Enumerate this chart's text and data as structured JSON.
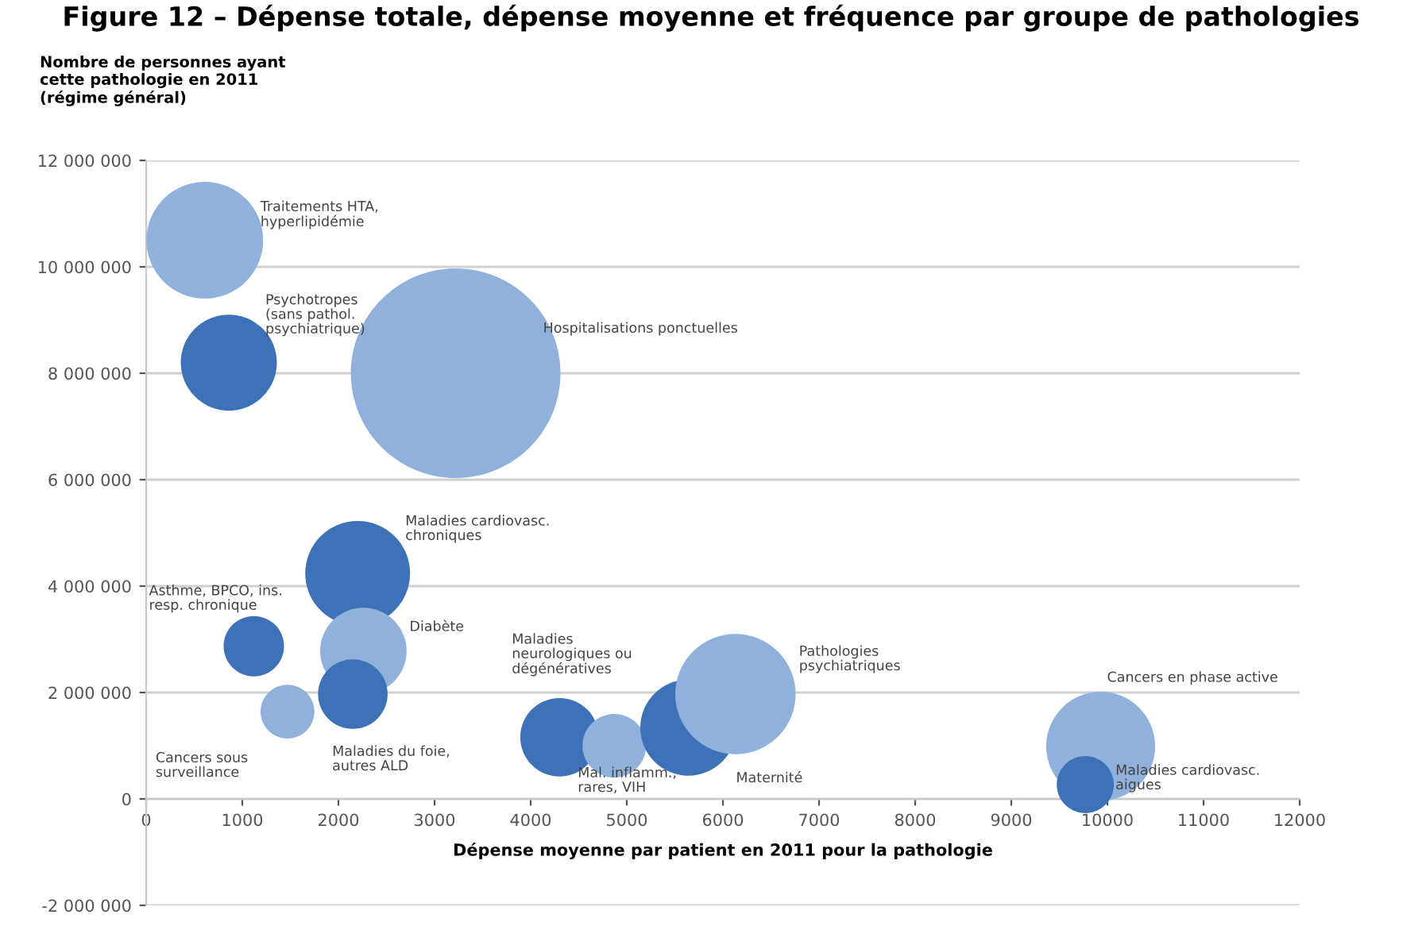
{
  "chart_data": {
    "type": "bubble",
    "title": "Figure 12 – Dépense totale, dépense moyenne et fréquence par groupe de pathologies",
    "xlabel": "Dépense moyenne par patient en 2011 pour la pathologie",
    "ylabel": "Nombre de personnes ayant\ncette pathologie en 2011\n(régime général)",
    "x": [
      610,
      860,
      3220,
      2200,
      1120,
      2260,
      2150,
      1470,
      4300,
      4870,
      5640,
      6130,
      9930,
      9770
    ],
    "values": [
      10500000,
      8200000,
      8000000,
      4240000,
      2870000,
      2780000,
      1970000,
      1640000,
      1160000,
      1000000,
      1340000,
      1970000,
      990000,
      270000
    ],
    "sizes": [
      0.31,
      0.21,
      1,
      0.25,
      0.083,
      0.17,
      0.11,
      0.066,
      0.14,
      0.092,
      0.21,
      0.33,
      0.27,
      0.074
    ],
    "colors": [
      "#8fb1dc",
      "#3d72b8",
      "#8fb1dc",
      "#3d72b8",
      "#3d72b8",
      "#8fb1dc",
      "#3d72b8",
      "#8fb1dc",
      "#3d72b8",
      "#8fb1dc",
      "#3d72b8",
      "#8fb1dc",
      "#8fb1dc",
      "#3d72b8"
    ],
    "value_labels": [
      "Traitements HTA,\nhyperlipidémie",
      "Psychotropes\n(sans pathol.\npsychiatrique)",
      "Hospitalisations ponctuelles",
      "Maladies cardiovasc.\nchroniques",
      "Asthme, BPCO, ins.\nresp. chronique",
      "Diabète",
      "Maladies du foie,\nautres ALD",
      "Cancers sous\nsurveillance",
      "Maladies\nneurologiques ou\ndégénératives",
      "Mal. inflamm.,\nrares, VIH",
      "Maternité",
      "Pathologies\npsychiatriques",
      "Cancers en phase active",
      "Maladies cardiovasc.\naigues"
    ],
    "xlim": [
      0,
      12000
    ],
    "xticks": [
      0,
      1000,
      2000,
      3000,
      4000,
      5000,
      6000,
      7000,
      8000,
      9000,
      10000,
      11000,
      12000
    ],
    "ylim": [
      -2000000,
      12000000
    ],
    "yticks": [
      {
        "value": -2000000,
        "label": "-2 000 000"
      },
      {
        "value": 0,
        "label": "0"
      },
      {
        "value": 2000000,
        "label": "2 000 000"
      },
      {
        "value": 4000000,
        "label": "4 000 000"
      },
      {
        "value": 6000000,
        "label": "6 000 000"
      },
      {
        "value": 8000000,
        "label": "8 000 000"
      },
      {
        "value": 10000000,
        "label": "10 000 000"
      },
      {
        "value": 12000000,
        "label": "12 000 000"
      }
    ],
    "grid": "y"
  }
}
